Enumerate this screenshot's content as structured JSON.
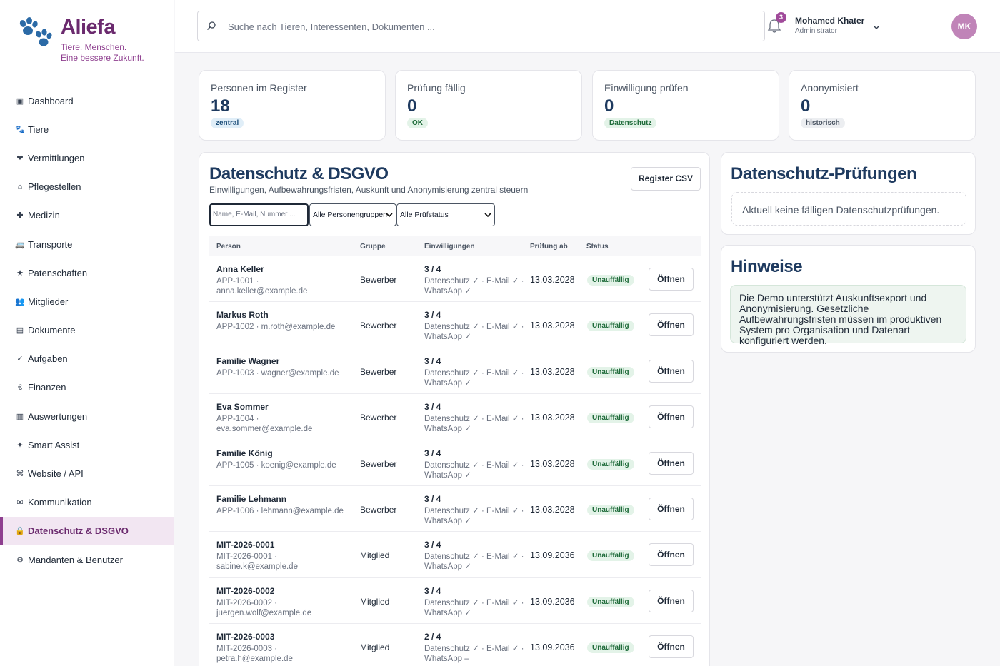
{
  "brand": {
    "name": "Aliefa",
    "tagline_line1": "Tiere. Menschen.",
    "tagline_line2": "Eine bessere Zukunft."
  },
  "sidebar": {
    "items": [
      {
        "icon": "dashboard-icon",
        "glyph": "▣",
        "label": "Dashboard"
      },
      {
        "icon": "paw-icon",
        "glyph": "🐾",
        "label": "Tiere"
      },
      {
        "icon": "heart-icon",
        "glyph": "❤",
        "label": "Vermittlungen"
      },
      {
        "icon": "home-icon",
        "glyph": "⌂",
        "label": "Pflegestellen"
      },
      {
        "icon": "plus-icon",
        "glyph": "✚",
        "label": "Medizin"
      },
      {
        "icon": "truck-icon",
        "glyph": "🚐",
        "label": "Transporte"
      },
      {
        "icon": "star-icon",
        "glyph": "★",
        "label": "Patenschaften"
      },
      {
        "icon": "people-icon",
        "glyph": "👥",
        "label": "Mitglieder"
      },
      {
        "icon": "document-icon",
        "glyph": "▤",
        "label": "Dokumente"
      },
      {
        "icon": "check-icon",
        "glyph": "✓",
        "label": "Aufgaben"
      },
      {
        "icon": "euro-icon",
        "glyph": "€",
        "label": "Finanzen"
      },
      {
        "icon": "chart-icon",
        "glyph": "▥",
        "label": "Auswertungen"
      },
      {
        "icon": "sparkle-icon",
        "glyph": "✦",
        "label": "Smart Assist"
      },
      {
        "icon": "command-icon",
        "glyph": "⌘",
        "label": "Website / API"
      },
      {
        "icon": "mail-icon",
        "glyph": "✉",
        "label": "Kommunikation"
      },
      {
        "icon": "lock-icon",
        "glyph": "🔒",
        "label": "Datenschutz & DSGVO",
        "active": true
      },
      {
        "icon": "gear-icon",
        "glyph": "⚙",
        "label": "Mandanten & Benutzer"
      }
    ]
  },
  "topbar": {
    "search_placeholder": "Suche nach Tieren, Interessenten, Dokumenten ...",
    "notification_count": "3",
    "user_name": "Mohamed Khater",
    "user_role": "Administrator",
    "avatar_initials": "MK"
  },
  "stats": [
    {
      "label": "Personen im Register",
      "value": "18",
      "pill": "zentral",
      "tone": "blue"
    },
    {
      "label": "Prüfung fällig",
      "value": "0",
      "pill": "OK",
      "tone": "green"
    },
    {
      "label": "Einwilligung prüfen",
      "value": "0",
      "pill": "Datenschutz",
      "tone": "green"
    },
    {
      "label": "Anonymisiert",
      "value": "0",
      "pill": "historisch",
      "tone": "gray"
    }
  ],
  "main": {
    "title": "Datenschutz & DSGVO",
    "subtitle": "Einwilligungen, Aufbewahrungsfristen, Auskunft und Anonymisierung zentral steuern",
    "csv_button": "Register CSV",
    "filter_placeholder": "Name, E-Mail, Nummer ...",
    "group_select": "Alle Personengruppen",
    "status_select": "Alle Prüfstatus",
    "columns": {
      "person": "Person",
      "group": "Gruppe",
      "consents": "Einwilligungen",
      "review": "Prüfung ab",
      "status": "Status"
    },
    "open_label": "Öffnen",
    "rows": [
      {
        "name": "Anna Keller",
        "meta": "APP-1001 · anna.keller@example.de",
        "group": "Bewerber",
        "consents": "3 / 4",
        "detail": "Datenschutz ✓ · E-Mail ✓ · WhatsApp ✓",
        "date": "13.03.2028",
        "status": "Unauffällig"
      },
      {
        "name": "Markus Roth",
        "meta": "APP-1002 · m.roth@example.de",
        "group": "Bewerber",
        "consents": "3 / 4",
        "detail": "Datenschutz ✓ · E-Mail ✓ · WhatsApp ✓",
        "date": "13.03.2028",
        "status": "Unauffällig"
      },
      {
        "name": "Familie Wagner",
        "meta": "APP-1003 · wagner@example.de",
        "group": "Bewerber",
        "consents": "3 / 4",
        "detail": "Datenschutz ✓ · E-Mail ✓ · WhatsApp ✓",
        "date": "13.03.2028",
        "status": "Unauffällig"
      },
      {
        "name": "Eva Sommer",
        "meta": "APP-1004 · eva.sommer@example.de",
        "group": "Bewerber",
        "consents": "3 / 4",
        "detail": "Datenschutz ✓ · E-Mail ✓ · WhatsApp ✓",
        "date": "13.03.2028",
        "status": "Unauffällig"
      },
      {
        "name": "Familie König",
        "meta": "APP-1005 · koenig@example.de",
        "group": "Bewerber",
        "consents": "3 / 4",
        "detail": "Datenschutz ✓ · E-Mail ✓ · WhatsApp ✓",
        "date": "13.03.2028",
        "status": "Unauffällig"
      },
      {
        "name": "Familie Lehmann",
        "meta": "APP-1006 · lehmann@example.de",
        "group": "Bewerber",
        "consents": "3 / 4",
        "detail": "Datenschutz ✓ · E-Mail ✓ · WhatsApp ✓",
        "date": "13.03.2028",
        "status": "Unauffällig"
      },
      {
        "name": "MIT-2026-0001",
        "meta": "MIT-2026-0001 · sabine.k@example.de",
        "group": "Mitglied",
        "consents": "3 / 4",
        "detail": "Datenschutz ✓ · E-Mail ✓ · WhatsApp ✓",
        "date": "13.09.2036",
        "status": "Unauffällig"
      },
      {
        "name": "MIT-2026-0002",
        "meta": "MIT-2026-0002 · juergen.wolf@example.de",
        "group": "Mitglied",
        "consents": "3 / 4",
        "detail": "Datenschutz ✓ · E-Mail ✓ · WhatsApp ✓",
        "date": "13.09.2036",
        "status": "Unauffällig"
      },
      {
        "name": "MIT-2026-0003",
        "meta": "MIT-2026-0003 · petra.h@example.de",
        "group": "Mitglied",
        "consents": "2 / 4",
        "detail": "Datenschutz ✓ · E-Mail ✓ · WhatsApp –",
        "date": "13.09.2036",
        "status": "Unauffällig"
      }
    ]
  },
  "reviews": {
    "title": "Datenschutz-Prüfungen",
    "empty": "Aktuell keine fälligen Datenschutzprüfungen."
  },
  "notes": {
    "title": "Hinweise",
    "text": "Die Demo unterstützt Auskunftsexport und Anonymisierung. Gesetzliche Aufbewahrungsfristen müssen im produktiven System pro Organisation und Datenart konfiguriert werden."
  },
  "colors": {
    "brand": "#6b2a6e",
    "accent": "#8e3f8f",
    "heading": "#1e3a5f",
    "success_bg": "#e3f3e8"
  }
}
